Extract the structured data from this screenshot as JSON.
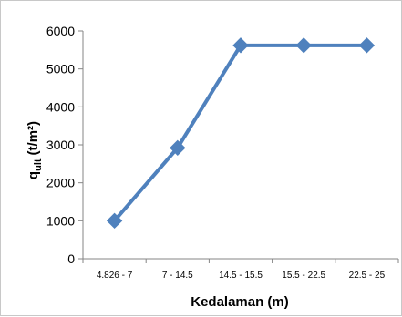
{
  "chart_data": {
    "type": "line",
    "categories": [
      "4.826 - 7",
      "7 - 14.5",
      "14.5 - 15.5",
      "15.5 - 22.5",
      "22.5 - 25"
    ],
    "series": [
      {
        "values": [
          1000,
          2920,
          5620,
          5620,
          5620
        ],
        "color": "#4F81BD",
        "marker": "diamond"
      }
    ],
    "xlabel": "Kedalaman (m)",
    "ylabel_main": "q",
    "ylabel_sub": "ult",
    "ylabel_unit": "(t/m²)",
    "ylim": [
      0,
      6000
    ],
    "yticks": [
      0,
      1000,
      2000,
      3000,
      4000,
      5000,
      6000
    ],
    "grid": false,
    "legend": "none"
  }
}
